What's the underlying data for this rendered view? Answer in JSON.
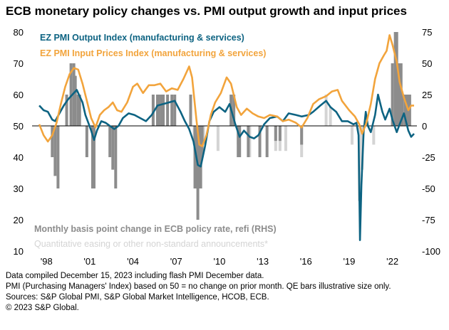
{
  "title": "ECB monetary policy changes vs. PMI output growth and input prices",
  "notes": [
    "Data compiled December 15, 2023 including flash PMI December data.",
    "PMI (Purchasing Managers' Index) based on 50 = no change on prior month. QE bars illustrative size only.",
    "Sources: S&P Global PMI, S&P Global Market Intelligence, HCOB, ECB.",
    "© 2023 S&P Global."
  ],
  "colors": {
    "output": "#0d6382",
    "input": "#f2a43c",
    "policy": "#8c8c8c",
    "qe": "#d4d4d4"
  },
  "chart_data": {
    "type": "line",
    "x_ticks": [
      "'98",
      "'01",
      "'04",
      "'07",
      "'10",
      "'13",
      "'16",
      "'19",
      "'22"
    ],
    "y_left_ticks": [
      10,
      20,
      30,
      40,
      50,
      60,
      70,
      80
    ],
    "y_right_ticks": [
      75,
      50,
      25,
      0,
      -25,
      -50,
      -75,
      -100
    ],
    "ylim_left": [
      10,
      80
    ],
    "ylim_right": [
      -100,
      75
    ],
    "grid": false,
    "legend": [
      {
        "label": "EZ PMI Output Index (manufacturing & services)",
        "color": "#0d6382"
      },
      {
        "label": "EZ PMI Input Prices Index (manufacturing & services)",
        "color": "#f2a43c"
      },
      {
        "label": "Monthly basis point change in ECB policy rate, refi (RHS)",
        "color": "#8c8c8c"
      },
      {
        "label": "Quantitative easing or other non-standard announcements*",
        "color": "#d4d4d4"
      }
    ],
    "series": [
      {
        "name": "EZ PMI Output Index (manufacturing & services)",
        "axis": "left",
        "points": [
          [
            1998.0,
            56.5
          ],
          [
            1998.3,
            55.0
          ],
          [
            1998.6,
            54.5
          ],
          [
            1998.9,
            52.0
          ],
          [
            1999.1,
            51.5
          ],
          [
            1999.4,
            54.0
          ],
          [
            1999.7,
            56.5
          ],
          [
            2000.0,
            58.5
          ],
          [
            2000.3,
            60.0
          ],
          [
            2000.6,
            61.5
          ],
          [
            2000.8,
            59.5
          ],
          [
            2001.0,
            57.5
          ],
          [
            2001.2,
            53.5
          ],
          [
            2001.4,
            51.0
          ],
          [
            2001.6,
            48.5
          ],
          [
            2001.8,
            45.5
          ],
          [
            2002.0,
            48.5
          ],
          [
            2002.3,
            51.5
          ],
          [
            2002.6,
            51.0
          ],
          [
            2002.9,
            50.0
          ],
          [
            2003.2,
            49.0
          ],
          [
            2003.5,
            50.0
          ],
          [
            2003.8,
            52.5
          ],
          [
            2004.2,
            54.0
          ],
          [
            2004.6,
            53.5
          ],
          [
            2005.0,
            52.5
          ],
          [
            2005.4,
            51.5
          ],
          [
            2005.8,
            53.5
          ],
          [
            2006.2,
            56.5
          ],
          [
            2006.6,
            57.0
          ],
          [
            2007.0,
            57.5
          ],
          [
            2007.4,
            58.0
          ],
          [
            2007.8,
            54.5
          ],
          [
            2008.1,
            51.5
          ],
          [
            2008.4,
            49.0
          ],
          [
            2008.7,
            45.0
          ],
          [
            2009.0,
            37.5
          ],
          [
            2009.2,
            37.0
          ],
          [
            2009.5,
            43.5
          ],
          [
            2009.8,
            51.5
          ],
          [
            2010.1,
            54.5
          ],
          [
            2010.5,
            56.0
          ],
          [
            2010.9,
            54.5
          ],
          [
            2011.2,
            57.0
          ],
          [
            2011.6,
            50.5
          ],
          [
            2011.9,
            46.5
          ],
          [
            2012.2,
            48.5
          ],
          [
            2012.6,
            46.5
          ],
          [
            2012.9,
            46.0
          ],
          [
            2013.2,
            47.0
          ],
          [
            2013.6,
            50.5
          ],
          [
            2014.0,
            52.5
          ],
          [
            2014.5,
            53.0
          ],
          [
            2014.9,
            51.5
          ],
          [
            2015.3,
            54.0
          ],
          [
            2015.8,
            53.5
          ],
          [
            2016.2,
            53.0
          ],
          [
            2016.7,
            53.5
          ],
          [
            2017.0,
            54.5
          ],
          [
            2017.5,
            56.5
          ],
          [
            2017.9,
            58.0
          ],
          [
            2018.2,
            56.0
          ],
          [
            2018.6,
            54.5
          ],
          [
            2019.0,
            51.5
          ],
          [
            2019.4,
            51.5
          ],
          [
            2019.8,
            50.5
          ],
          [
            2020.0,
            51.0
          ],
          [
            2020.15,
            47.0
          ],
          [
            2020.25,
            13.5
          ],
          [
            2020.35,
            31.0
          ],
          [
            2020.5,
            48.0
          ],
          [
            2020.65,
            54.5
          ],
          [
            2020.8,
            50.0
          ],
          [
            2021.0,
            48.0
          ],
          [
            2021.3,
            53.5
          ],
          [
            2021.5,
            60.0
          ],
          [
            2021.8,
            54.5
          ],
          [
            2022.0,
            52.0
          ],
          [
            2022.3,
            55.5
          ],
          [
            2022.5,
            52.0
          ],
          [
            2022.8,
            48.0
          ],
          [
            2023.0,
            50.5
          ],
          [
            2023.3,
            54.0
          ],
          [
            2023.6,
            48.5
          ],
          [
            2023.8,
            46.5
          ],
          [
            2024.0,
            47.5
          ]
        ]
      },
      {
        "name": "EZ PMI Input Prices Index (manufacturing & services)",
        "axis": "left",
        "points": [
          [
            1998.0,
            50.5
          ],
          [
            1998.3,
            47.0
          ],
          [
            1998.6,
            45.0
          ],
          [
            1998.9,
            47.0
          ],
          [
            1999.2,
            51.0
          ],
          [
            1999.5,
            57.0
          ],
          [
            1999.8,
            62.5
          ],
          [
            2000.1,
            66.5
          ],
          [
            2000.4,
            68.5
          ],
          [
            2000.7,
            68.0
          ],
          [
            2001.0,
            63.5
          ],
          [
            2001.3,
            58.0
          ],
          [
            2001.6,
            52.5
          ],
          [
            2001.9,
            49.5
          ],
          [
            2002.2,
            53.5
          ],
          [
            2002.5,
            55.0
          ],
          [
            2002.8,
            56.0
          ],
          [
            2003.1,
            57.5
          ],
          [
            2003.4,
            55.0
          ],
          [
            2003.7,
            54.5
          ],
          [
            2004.1,
            57.5
          ],
          [
            2004.5,
            62.5
          ],
          [
            2004.8,
            63.5
          ],
          [
            2005.2,
            60.5
          ],
          [
            2005.6,
            63.0
          ],
          [
            2006.0,
            63.0
          ],
          [
            2006.4,
            63.5
          ],
          [
            2006.8,
            61.0
          ],
          [
            2007.2,
            62.0
          ],
          [
            2007.6,
            61.5
          ],
          [
            2008.0,
            65.0
          ],
          [
            2008.4,
            69.0
          ],
          [
            2008.6,
            65.5
          ],
          [
            2008.9,
            52.0
          ],
          [
            2009.1,
            44.0
          ],
          [
            2009.3,
            43.5
          ],
          [
            2009.6,
            47.0
          ],
          [
            2009.9,
            53.5
          ],
          [
            2010.2,
            57.5
          ],
          [
            2010.6,
            60.5
          ],
          [
            2011.0,
            65.5
          ],
          [
            2011.3,
            63.5
          ],
          [
            2011.7,
            56.0
          ],
          [
            2012.0,
            53.5
          ],
          [
            2012.4,
            55.5
          ],
          [
            2012.8,
            54.0
          ],
          [
            2013.2,
            53.0
          ],
          [
            2013.6,
            52.5
          ],
          [
            2014.0,
            53.5
          ],
          [
            2014.5,
            53.0
          ],
          [
            2014.9,
            51.5
          ],
          [
            2015.3,
            52.0
          ],
          [
            2015.8,
            51.0
          ],
          [
            2016.2,
            49.5
          ],
          [
            2016.6,
            52.5
          ],
          [
            2017.0,
            57.0
          ],
          [
            2017.4,
            58.5
          ],
          [
            2017.9,
            59.5
          ],
          [
            2018.3,
            61.0
          ],
          [
            2018.7,
            61.5
          ],
          [
            2019.0,
            58.0
          ],
          [
            2019.5,
            55.0
          ],
          [
            2019.9,
            53.0
          ],
          [
            2020.2,
            50.5
          ],
          [
            2020.4,
            47.5
          ],
          [
            2020.7,
            51.0
          ],
          [
            2021.0,
            57.0
          ],
          [
            2021.3,
            65.0
          ],
          [
            2021.6,
            70.0
          ],
          [
            2021.9,
            72.5
          ],
          [
            2022.1,
            74.0
          ],
          [
            2022.3,
            79.0
          ],
          [
            2022.5,
            76.0
          ],
          [
            2022.8,
            70.5
          ],
          [
            2023.0,
            64.0
          ],
          [
            2023.3,
            59.0
          ],
          [
            2023.6,
            55.0
          ],
          [
            2023.8,
            56.5
          ],
          [
            2024.0,
            56.5
          ]
        ]
      }
    ],
    "policy_bars_rhs": [
      [
        1998.9,
        -25
      ],
      [
        1999.1,
        -40
      ],
      [
        1999.3,
        -50
      ],
      [
        1999.9,
        25
      ],
      [
        2000.2,
        50
      ],
      [
        2000.4,
        50
      ],
      [
        2000.5,
        40
      ],
      [
        2000.7,
        25
      ],
      [
        2000.8,
        25
      ],
      [
        2001.3,
        -25
      ],
      [
        2001.7,
        -50
      ],
      [
        2001.8,
        -50
      ],
      [
        2002.9,
        -25
      ],
      [
        2003.1,
        -35
      ],
      [
        2003.3,
        -50
      ],
      [
        2005.9,
        25
      ],
      [
        2006.2,
        25
      ],
      [
        2006.3,
        25
      ],
      [
        2006.5,
        25
      ],
      [
        2006.6,
        25
      ],
      [
        2006.9,
        25
      ],
      [
        2007.2,
        25
      ],
      [
        2007.4,
        25
      ],
      [
        2008.5,
        25
      ],
      [
        2008.8,
        -50
      ],
      [
        2008.9,
        -50
      ],
      [
        2009.0,
        -75
      ],
      [
        2009.1,
        -50
      ],
      [
        2009.2,
        -50
      ],
      [
        2009.3,
        -25
      ],
      [
        2011.3,
        25
      ],
      [
        2011.5,
        25
      ],
      [
        2011.8,
        -25
      ],
      [
        2011.9,
        -25
      ],
      [
        2012.5,
        -25
      ],
      [
        2013.3,
        -25
      ],
      [
        2013.8,
        -25
      ],
      [
        2014.4,
        -12
      ],
      [
        2014.7,
        -12
      ],
      [
        2016.2,
        -15
      ],
      [
        2022.5,
        50
      ],
      [
        2022.7,
        75
      ],
      [
        2022.8,
        75
      ],
      [
        2022.95,
        50
      ],
      [
        2023.1,
        50
      ],
      [
        2023.2,
        25
      ],
      [
        2023.4,
        25
      ],
      [
        2023.55,
        25
      ],
      [
        2023.7,
        25
      ]
    ],
    "qe_bars_rhs": [
      [
        2008.75,
        -15
      ],
      [
        2009.4,
        -15
      ],
      [
        2010.4,
        -20
      ],
      [
        2011.8,
        -15
      ],
      [
        2012.6,
        -25
      ],
      [
        2014.4,
        -20
      ],
      [
        2014.7,
        -20
      ],
      [
        2015.1,
        -20
      ],
      [
        2016.2,
        -25
      ],
      [
        2017.9,
        25
      ],
      [
        2018.2,
        15
      ],
      [
        2019.7,
        -15
      ],
      [
        2020.2,
        -60
      ],
      [
        2020.4,
        -35
      ],
      [
        2021.2,
        -15
      ]
    ]
  }
}
